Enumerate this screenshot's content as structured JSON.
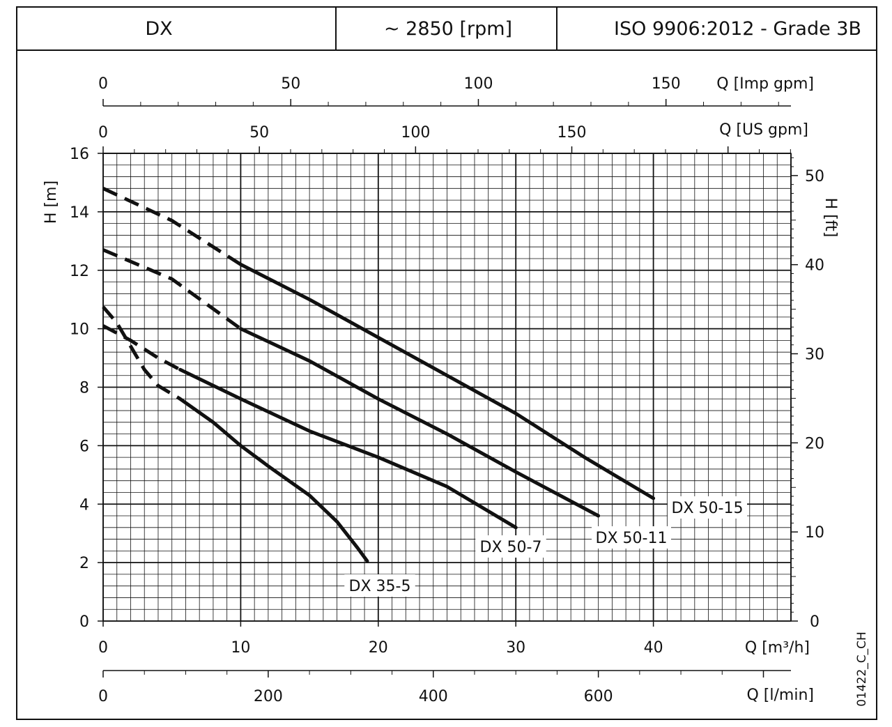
{
  "header": {
    "model": "DX",
    "speed": "~ 2850 [rpm]",
    "standard": "ISO 9906:2012 - Grade 3B"
  },
  "drawing_code": "01422_C_CH",
  "chart_data": {
    "type": "line",
    "title": "",
    "x_primary": {
      "label": "Q [m³/h]",
      "ticks": [
        0,
        10,
        20,
        30,
        40
      ],
      "range": [
        0,
        50
      ]
    },
    "x_top_imp": {
      "label": "Q [Imp gpm]",
      "ticks": [
        0,
        50,
        100,
        150
      ]
    },
    "x_top_us": {
      "label": "Q [US gpm]",
      "ticks": [
        0,
        50,
        100,
        150
      ]
    },
    "x_bottom_lmin": {
      "label": "Q [l/min]",
      "ticks": [
        0,
        200,
        400,
        600
      ]
    },
    "y_left": {
      "label": "H [m]",
      "ticks": [
        0,
        2,
        4,
        6,
        8,
        10,
        12,
        14,
        16
      ],
      "range": [
        0,
        16
      ]
    },
    "y_right": {
      "label": "H [ft]",
      "ticks": [
        0,
        10,
        20,
        30,
        40,
        50
      ]
    },
    "grid": true,
    "series": [
      {
        "name": "DX 35-5",
        "dashed": [
          [
            0,
            10.75
          ],
          [
            1,
            10.2
          ],
          [
            2,
            9.4
          ],
          [
            3,
            8.6
          ],
          [
            4,
            8.05
          ],
          [
            5.6,
            7.6
          ]
        ],
        "solid": [
          [
            5.6,
            7.6
          ],
          [
            8,
            6.8
          ],
          [
            10,
            6.0
          ],
          [
            12,
            5.3
          ],
          [
            15,
            4.3
          ],
          [
            17,
            3.4
          ],
          [
            18.5,
            2.5
          ],
          [
            19.2,
            2.05
          ]
        ]
      },
      {
        "name": "DX 50-7",
        "dashed": [
          [
            0,
            10.1
          ],
          [
            2,
            9.6
          ],
          [
            4,
            9.0
          ],
          [
            5.6,
            8.6
          ]
        ],
        "solid": [
          [
            5.6,
            8.6
          ],
          [
            10,
            7.6
          ],
          [
            15,
            6.5
          ],
          [
            20,
            5.6
          ],
          [
            25,
            4.6
          ],
          [
            30,
            3.2
          ]
        ]
      },
      {
        "name": "DX 50-11",
        "dashed": [
          [
            0,
            12.7
          ],
          [
            5,
            11.7
          ],
          [
            10,
            10.0
          ]
        ],
        "solid": [
          [
            10,
            10.0
          ],
          [
            15,
            8.9
          ],
          [
            20,
            7.6
          ],
          [
            25,
            6.4
          ],
          [
            30,
            5.1
          ],
          [
            36,
            3.6
          ]
        ]
      },
      {
        "name": "DX 50-15",
        "dashed": [
          [
            0,
            14.8
          ],
          [
            5,
            13.7
          ],
          [
            10,
            12.2
          ]
        ],
        "solid": [
          [
            10,
            12.2
          ],
          [
            15,
            11.0
          ],
          [
            20,
            9.7
          ],
          [
            25,
            8.4
          ],
          [
            30,
            7.1
          ],
          [
            35,
            5.6
          ],
          [
            40,
            4.2
          ]
        ]
      }
    ]
  }
}
